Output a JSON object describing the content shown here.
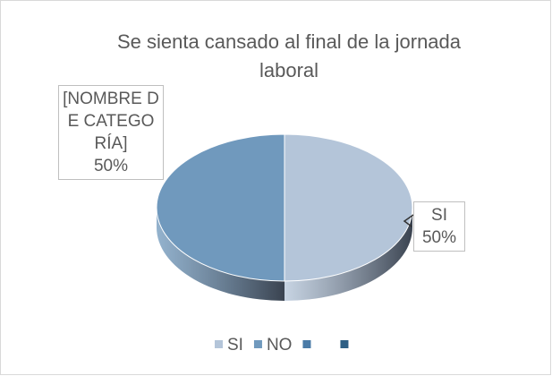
{
  "chart_data": {
    "type": "pie3d",
    "title": "Se sienta cansado al final de la jornada laboral",
    "categories": [
      "SI",
      "NO",
      null,
      null
    ],
    "values": [
      50,
      50,
      null,
      null
    ],
    "value_labels": [
      "50%",
      "50%",
      null,
      null
    ],
    "label_names": [
      "SI",
      "[NOMBRE DE CATEGORÍA]",
      null,
      null
    ],
    "colors": [
      "#b4c5d9",
      "#7099bd",
      "#4a7ba7",
      "#2e5f85"
    ],
    "legend": "bottom"
  }
}
